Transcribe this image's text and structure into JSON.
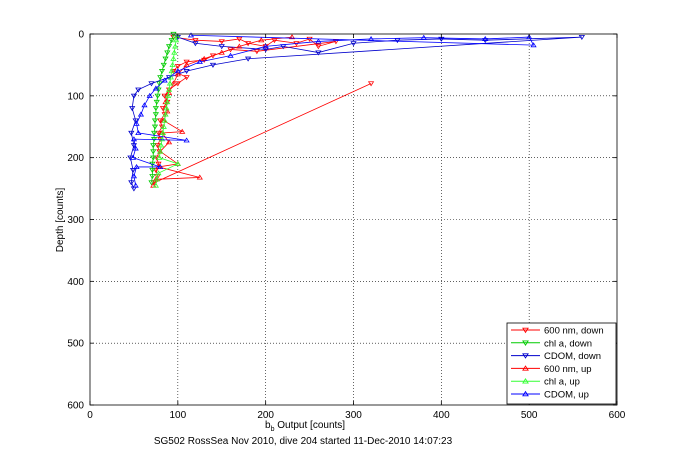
{
  "chart_data": {
    "type": "scatter",
    "title": "",
    "xlabel_main": "b",
    "xlabel_sub": "b",
    "xlabel_rest": " Output [counts]",
    "ylabel": "Depth [counts]",
    "caption": "SG502 RossSea Nov 2010, dive 204 started 11-Dec-2010 14:07:23",
    "xlim": [
      0,
      600
    ],
    "ylim": [
      0,
      600
    ],
    "y_reversed": true,
    "grid": true,
    "legend_position": "bottom-right",
    "x_ticks": [
      "0",
      "100",
      "200",
      "300",
      "400",
      "500",
      "600"
    ],
    "y_ticks": [
      "0",
      "100",
      "200",
      "300",
      "400",
      "500",
      "600"
    ],
    "series": [
      {
        "name": "600 nm, down",
        "color": "#ff0000",
        "marker": "triangle-down",
        "connected": true,
        "points": [
          [
            95,
            5
          ],
          [
            120,
            10
          ],
          [
            150,
            12
          ],
          [
            170,
            8
          ],
          [
            180,
            15
          ],
          [
            200,
            20
          ],
          [
            210,
            10
          ],
          [
            235,
            15
          ],
          [
            250,
            8
          ],
          [
            260,
            20
          ],
          [
            280,
            12
          ],
          [
            190,
            28
          ],
          [
            160,
            25
          ],
          [
            140,
            35
          ],
          [
            130,
            42
          ],
          [
            110,
            45
          ],
          [
            100,
            52
          ],
          [
            95,
            60
          ],
          [
            110,
            70
          ],
          [
            100,
            80
          ],
          [
            90,
            90
          ],
          [
            85,
            100
          ],
          [
            88,
            110
          ],
          [
            83,
            120
          ],
          [
            85,
            130
          ],
          [
            80,
            140
          ],
          [
            82,
            150
          ],
          [
            78,
            160
          ],
          [
            80,
            170
          ],
          [
            77,
            180
          ],
          [
            79,
            190
          ],
          [
            76,
            200
          ],
          [
            78,
            210
          ],
          [
            75,
            220
          ],
          [
            77,
            230
          ],
          [
            74,
            240
          ],
          [
            320,
            80
          ]
        ]
      },
      {
        "name": "chl a, down",
        "color": "#00cc00",
        "marker": "triangle-down",
        "connected": true,
        "points": [
          [
            95,
            0
          ],
          [
            93,
            10
          ],
          [
            90,
            20
          ],
          [
            88,
            30
          ],
          [
            86,
            40
          ],
          [
            84,
            50
          ],
          [
            82,
            60
          ],
          [
            80,
            70
          ],
          [
            79,
            80
          ],
          [
            78,
            90
          ],
          [
            77,
            100
          ],
          [
            76,
            110
          ],
          [
            75,
            120
          ],
          [
            75,
            130
          ],
          [
            74,
            140
          ],
          [
            74,
            150
          ],
          [
            73,
            160
          ],
          [
            73,
            170
          ],
          [
            72,
            180
          ],
          [
            72,
            190
          ],
          [
            72,
            200
          ],
          [
            71,
            210
          ],
          [
            71,
            220
          ],
          [
            71,
            230
          ],
          [
            70,
            240
          ]
        ]
      },
      {
        "name": "CDOM, down",
        "color": "#0000cc",
        "marker": "triangle-down",
        "connected": true,
        "points": [
          [
            100,
            5
          ],
          [
            120,
            15
          ],
          [
            150,
            20
          ],
          [
            200,
            25
          ],
          [
            220,
            20
          ],
          [
            260,
            30
          ],
          [
            300,
            15
          ],
          [
            350,
            10
          ],
          [
            400,
            8
          ],
          [
            450,
            10
          ],
          [
            560,
            5
          ],
          [
            180,
            40
          ],
          [
            140,
            50
          ],
          [
            110,
            60
          ],
          [
            90,
            70
          ],
          [
            70,
            80
          ],
          [
            55,
            90
          ],
          [
            50,
            100
          ],
          [
            48,
            120
          ],
          [
            52,
            140
          ],
          [
            47,
            160
          ],
          [
            50,
            180
          ],
          [
            46,
            200
          ],
          [
            49,
            220
          ],
          [
            47,
            240
          ],
          [
            50,
            250
          ]
        ]
      },
      {
        "name": "600 nm, up",
        "color": "#ff0000",
        "marker": "triangle-up",
        "connected": true,
        "points": [
          [
            72,
            245
          ],
          [
            75,
            235
          ],
          [
            125,
            232
          ],
          [
            78,
            215
          ],
          [
            100,
            210
          ],
          [
            80,
            190
          ],
          [
            90,
            175
          ],
          [
            82,
            160
          ],
          [
            105,
            158
          ],
          [
            84,
            140
          ],
          [
            88,
            125
          ],
          [
            86,
            110
          ],
          [
            90,
            95
          ],
          [
            95,
            80
          ],
          [
            100,
            65
          ],
          [
            110,
            50
          ],
          [
            130,
            40
          ],
          [
            150,
            30
          ],
          [
            170,
            20
          ],
          [
            195,
            10
          ],
          [
            230,
            5
          ]
        ]
      },
      {
        "name": "chl a, up",
        "color": "#33ff33",
        "marker": "triangle-up",
        "connected": true,
        "points": [
          [
            75,
            245
          ],
          [
            76,
            235
          ],
          [
            78,
            225
          ],
          [
            100,
            210
          ],
          [
            79,
            200
          ],
          [
            80,
            190
          ],
          [
            81,
            180
          ],
          [
            82,
            170
          ],
          [
            83,
            160
          ],
          [
            84,
            150
          ],
          [
            85,
            140
          ],
          [
            86,
            130
          ],
          [
            87,
            120
          ],
          [
            88,
            110
          ],
          [
            89,
            100
          ],
          [
            90,
            90
          ],
          [
            91,
            80
          ],
          [
            92,
            70
          ],
          [
            93,
            60
          ],
          [
            94,
            50
          ],
          [
            95,
            40
          ],
          [
            96,
            30
          ],
          [
            97,
            20
          ],
          [
            98,
            10
          ],
          [
            99,
            3
          ]
        ]
      },
      {
        "name": "CDOM, up",
        "color": "#0000ff",
        "marker": "triangle-up",
        "connected": true,
        "points": [
          [
            52,
            245
          ],
          [
            50,
            230
          ],
          [
            53,
            215
          ],
          [
            80,
            215
          ],
          [
            49,
            200
          ],
          [
            52,
            185
          ],
          [
            50,
            170
          ],
          [
            110,
            172
          ],
          [
            55,
            160
          ],
          [
            53,
            145
          ],
          [
            58,
            130
          ],
          [
            62,
            115
          ],
          [
            68,
            100
          ],
          [
            75,
            88
          ],
          [
            85,
            75
          ],
          [
            100,
            60
          ],
          [
            125,
            45
          ],
          [
            160,
            35
          ],
          [
            200,
            20
          ],
          [
            260,
            12
          ],
          [
            320,
            8
          ],
          [
            380,
            6
          ],
          [
            450,
            8
          ],
          [
            500,
            5
          ],
          [
            505,
            18
          ],
          [
            115,
            2
          ]
        ]
      }
    ]
  }
}
